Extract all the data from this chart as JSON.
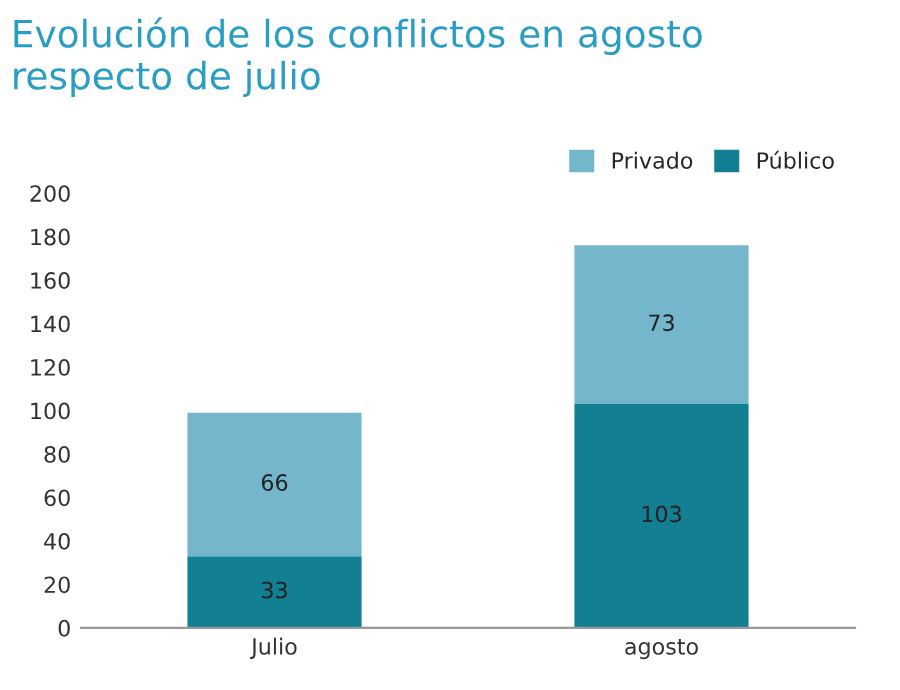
{
  "chart_data": {
    "type": "bar",
    "title": "Evolución de los conflictos en agosto\nrespecto de julio",
    "categories": [
      "Julio",
      "agosto"
    ],
    "series": [
      {
        "name": "Público",
        "color": "#137f93",
        "values": [
          33,
          103
        ]
      },
      {
        "name": "Privado",
        "color": "#74b7cc",
        "values": [
          66,
          73
        ]
      }
    ],
    "stacked": true,
    "data_labels": true,
    "ylim": [
      0,
      200
    ],
    "yticks": [
      0,
      20,
      40,
      60,
      80,
      100,
      120,
      140,
      160,
      180,
      200
    ],
    "grid": false,
    "legend": "top right"
  }
}
